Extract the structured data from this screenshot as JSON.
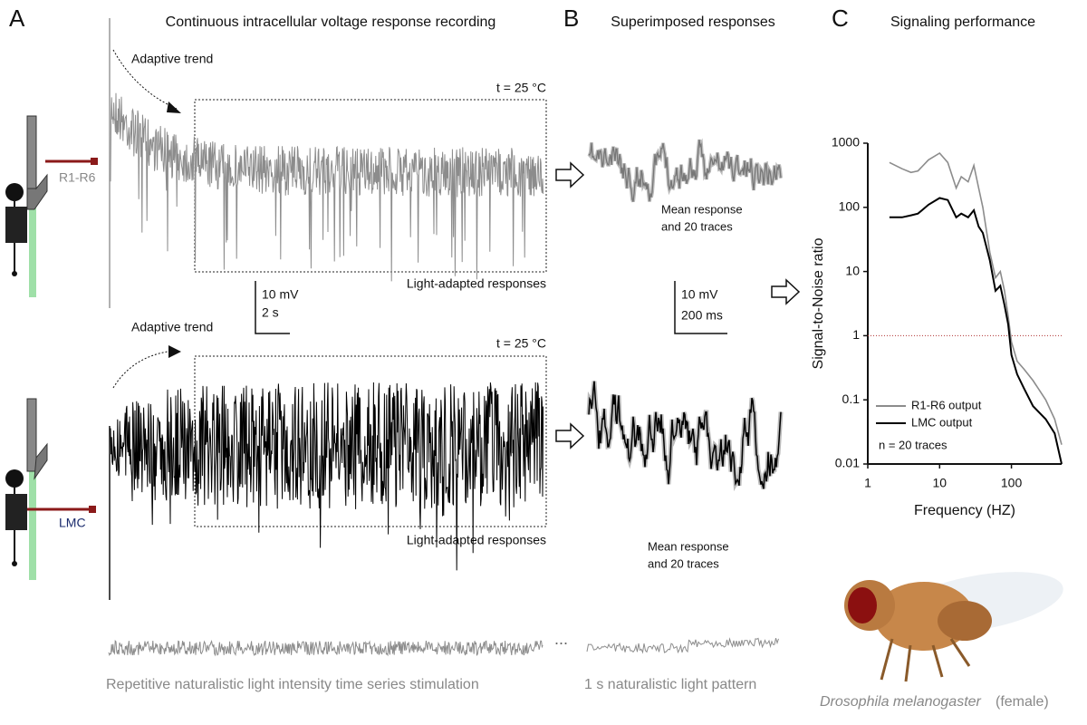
{
  "panels": [
    {
      "letter": "A",
      "title": "Continuous intracellular voltage response recording"
    },
    {
      "letter": "B",
      "title": "Superimposed responses"
    },
    {
      "letter": "C",
      "title": "Signaling performance"
    }
  ],
  "recordings": [
    {
      "cell": "R1-R6",
      "trend": "Adaptive trend",
      "temperature": "t = 25 °C",
      "region": "Light-adapted responses",
      "mean": [
        "Mean response",
        "and 20 traces"
      ]
    },
    {
      "cell": "LMC",
      "trend": "Adaptive trend",
      "temperature": "t = 25 °C",
      "region": "Light-adapted responses",
      "mean": [
        "Mean response",
        "and 20 traces"
      ]
    }
  ],
  "scalebars": [
    [
      "10 mV",
      "2 s"
    ],
    [
      "10 mV",
      "200 ms"
    ]
  ],
  "stimulus": {
    "long": "Repetitive naturalistic light intensity time series stimulation",
    "ellipsis": "...",
    "short": "1 s naturalistic light pattern"
  },
  "caption": {
    "species": "Drosophila melanogaster",
    "sex": "(female)"
  },
  "chart_data": {
    "type": "line",
    "xlabel": "Frequency (HZ)",
    "ylabel": "Signal-to-Noise ratio",
    "xlog": true,
    "ylog": true,
    "xlim": [
      1,
      500
    ],
    "ylim": [
      0.01,
      1000
    ],
    "xticks": [
      1,
      10,
      100
    ],
    "yticks": [
      0.01,
      0.1,
      1,
      10,
      100,
      1000
    ],
    "hline": {
      "value": 1,
      "color": "#b03030"
    },
    "legend": "lower left",
    "annotation": "n = 20 traces",
    "x": [
      2,
      3,
      4,
      5,
      7,
      10,
      13,
      17,
      20,
      25,
      30,
      35,
      40,
      50,
      60,
      70,
      80,
      90,
      100,
      120,
      150,
      200,
      300,
      400,
      500
    ],
    "series": [
      {
        "name": "R1-R6 output",
        "color": "#8c8c8c",
        "values": [
          500,
          400,
          350,
          370,
          550,
          700,
          500,
          200,
          300,
          250,
          450,
          200,
          100,
          20,
          8,
          10,
          5,
          2,
          0.8,
          0.4,
          0.3,
          0.2,
          0.1,
          0.05,
          0.02
        ]
      },
      {
        "name": "LMC output",
        "color": "#000000",
        "values": [
          70,
          70,
          75,
          80,
          110,
          140,
          130,
          70,
          80,
          70,
          90,
          50,
          40,
          15,
          5,
          6,
          3,
          1.5,
          0.5,
          0.25,
          0.15,
          0.08,
          0.05,
          0.03,
          0.01
        ]
      }
    ]
  }
}
